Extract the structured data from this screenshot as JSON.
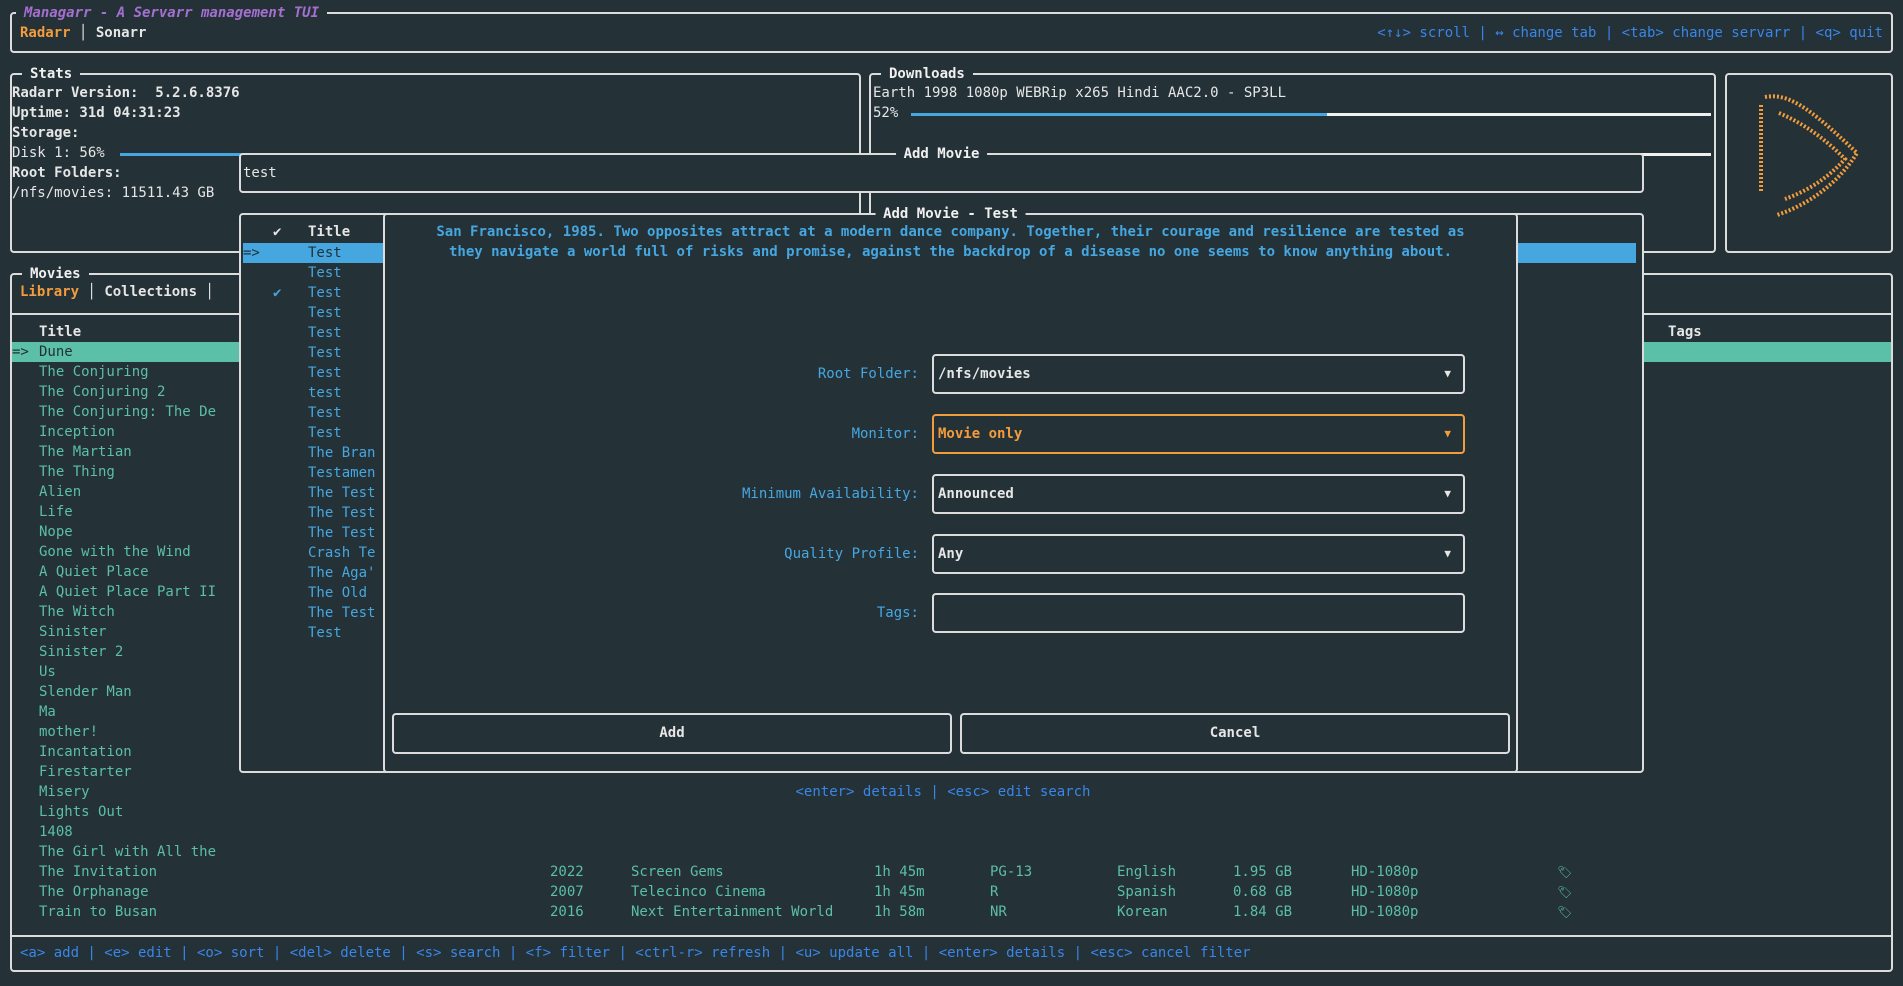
{
  "app": {
    "title": "Managarr - A Servarr management TUI",
    "servarr_tabs": [
      {
        "label": "Radarr",
        "active": true
      },
      {
        "label": "Sonarr",
        "active": false
      }
    ],
    "help": "<↑↓> scroll | ↔ change tab | <tab> change servarr | <q> quit"
  },
  "stats": {
    "title": "Stats",
    "version": "Radarr Version:  5.2.6.8376",
    "uptime": "Uptime: 31d 04:31:23",
    "storage_label": "Storage:",
    "disk": "Disk 1: 56%",
    "disk_percent": 56,
    "root_label": "Root Folders:",
    "root": "/nfs/movies: 11511.43 GB"
  },
  "downloads": {
    "title": "Downloads",
    "name": "Earth 1998 1080p WEBRip x265 Hindi AAC2.0 - SP3LL",
    "percent_label": "52%",
    "percent": 52
  },
  "movies": {
    "title": "Movies",
    "tabs": [
      {
        "label": "Library",
        "active": true
      },
      {
        "label": "Collections",
        "active": false
      }
    ],
    "header_title": "Title",
    "header_tags": "Tags",
    "selected_marker": "=>",
    "rows": [
      {
        "title": "Dune"
      },
      {
        "title": "The Conjuring"
      },
      {
        "title": "The Conjuring 2"
      },
      {
        "title": "The Conjuring: The De"
      },
      {
        "title": "Inception"
      },
      {
        "title": "The Martian"
      },
      {
        "title": "The Thing"
      },
      {
        "title": "Alien"
      },
      {
        "title": "Life"
      },
      {
        "title": "Nope"
      },
      {
        "title": "Gone with the Wind"
      },
      {
        "title": "A Quiet Place"
      },
      {
        "title": "A Quiet Place Part II"
      },
      {
        "title": "The Witch"
      },
      {
        "title": "Sinister"
      },
      {
        "title": "Sinister 2"
      },
      {
        "title": "Us"
      },
      {
        "title": "Slender Man"
      },
      {
        "title": "Ma"
      },
      {
        "title": "mother!"
      },
      {
        "title": "Incantation"
      },
      {
        "title": "Firestarter"
      },
      {
        "title": "Misery"
      },
      {
        "title": "Lights Out"
      },
      {
        "title": "1408"
      },
      {
        "title": "The Girl with All the"
      },
      {
        "title": "The Invitation",
        "year": "2022",
        "studio": "Screen Gems",
        "runtime": "1h 45m",
        "rating": "PG-13",
        "language": "English",
        "size": "1.95 GB",
        "quality": "HD-1080p",
        "icon": "monitored-bookmark-icon"
      },
      {
        "title": "The Orphanage",
        "year": "2007",
        "studio": "Telecinco Cinema",
        "runtime": "1h 45m",
        "rating": "R",
        "language": "Spanish",
        "size": "0.68 GB",
        "quality": "HD-1080p",
        "icon": "monitored-bookmark-icon"
      },
      {
        "title": "Train to Busan",
        "year": "2016",
        "studio": "Next Entertainment World",
        "runtime": "1h 58m",
        "rating": "NR",
        "language": "Korean",
        "size": "1.84 GB",
        "quality": "HD-1080p",
        "icon": "monitored-bookmark-icon"
      }
    ],
    "footer_help": "<a> add | <e> edit | <o> sort | <del> delete | <s> search | <f> filter | <ctrl-r> refresh | <u> update all | <enter> details | <esc> cancel filter"
  },
  "add_movie": {
    "title": "Add Movie",
    "search_value": "test",
    "results_header_check": "✔",
    "results_header_title": "Title",
    "selected_marker": "=>",
    "results": [
      {
        "title": "Test",
        "in_library": false
      },
      {
        "title": "Test",
        "in_library": false
      },
      {
        "title": "Test",
        "in_library": true
      },
      {
        "title": "Test",
        "in_library": false
      },
      {
        "title": "Test",
        "in_library": false
      },
      {
        "title": "Test",
        "in_library": false
      },
      {
        "title": "Test",
        "in_library": false
      },
      {
        "title": "test",
        "in_library": false
      },
      {
        "title": "Test",
        "in_library": false
      },
      {
        "title": "Test",
        "in_library": false
      },
      {
        "title": "The Bran",
        "in_library": false
      },
      {
        "title": "Testamen",
        "in_library": false
      },
      {
        "title": "The Test",
        "in_library": false
      },
      {
        "title": "The Test",
        "in_library": false
      },
      {
        "title": "The Test",
        "in_library": false
      },
      {
        "title": "Crash Te",
        "in_library": false
      },
      {
        "title": "The Aga'",
        "in_library": false
      },
      {
        "title": "The Old",
        "in_library": false
      },
      {
        "title": "The Test",
        "in_library": false
      },
      {
        "title": "Test",
        "in_library": false
      }
    ],
    "help": "<enter> details | <esc> edit search"
  },
  "modal": {
    "title": "Add Movie - Test",
    "overview_line1": "San Francisco, 1985. Two opposites attract at a modern dance company. Together, their courage and resilience are tested as",
    "overview_line2": "they navigate a world full of risks and promise, against the backdrop of a disease no one seems to know anything about.",
    "root_folder_label": "Root Folder:",
    "root_folder_value": "/nfs/movies",
    "monitor_label": "Monitor:",
    "monitor_value": "Movie only",
    "min_avail_label": "Minimum Availability:",
    "min_avail_value": "Announced",
    "quality_label": "Quality Profile:",
    "quality_value": "Any",
    "tags_label": "Tags:",
    "tags_value": "",
    "add_label": "Add",
    "cancel_label": "Cancel",
    "dropdown_arrow": "▼"
  },
  "colors": {
    "background": "#243137",
    "accent_orange": "#f39c3c",
    "library_teal": "#5cbfa7",
    "search_blue": "#46a7e0",
    "help_blue": "#3a86e8",
    "title_purple": "#a56fd0"
  }
}
